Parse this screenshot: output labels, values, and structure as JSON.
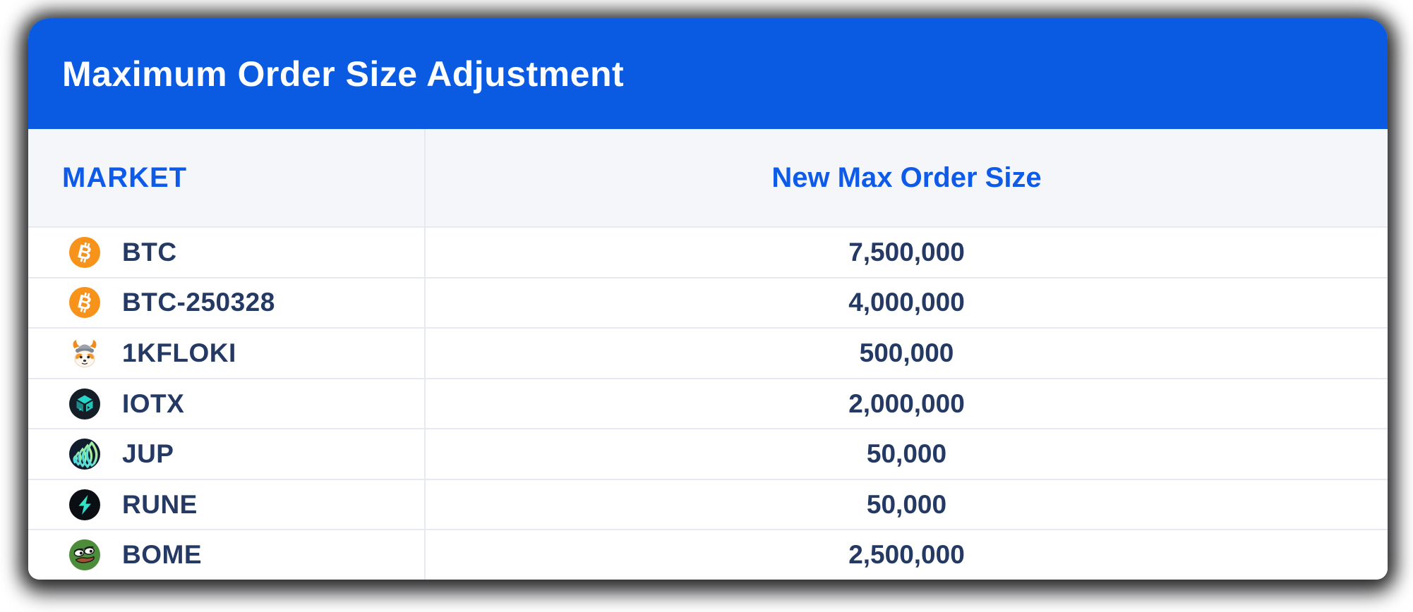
{
  "header": {
    "title": "Maximum Order Size Adjustment"
  },
  "table": {
    "columns": [
      {
        "key": "market",
        "label": "MARKET"
      },
      {
        "key": "new_max_order_size",
        "label": "New Max Order Size"
      }
    ],
    "rows": [
      {
        "market": "BTC",
        "icon": "btc-icon",
        "new_max_order_size": "7,500,000"
      },
      {
        "market": "BTC-250328",
        "icon": "btc-icon",
        "new_max_order_size": "4,000,000"
      },
      {
        "market": "1KFLOKI",
        "icon": "floki-icon",
        "new_max_order_size": "500,000"
      },
      {
        "market": "IOTX",
        "icon": "iotx-icon",
        "new_max_order_size": "2,000,000"
      },
      {
        "market": "JUP",
        "icon": "jup-icon",
        "new_max_order_size": "50,000"
      },
      {
        "market": "RUNE",
        "icon": "rune-icon",
        "new_max_order_size": "50,000"
      },
      {
        "market": "BOME",
        "icon": "bome-icon",
        "new_max_order_size": "2,500,000"
      }
    ]
  },
  "colors": {
    "header_bg": "#0A5BE2",
    "header_title": "#FFFFFF",
    "column_header_bg": "#F4F6FA",
    "column_header_text": "#0D5BE8",
    "row_text": "#243A64",
    "divider": "#E7E9F1",
    "btc_orange": "#F7931A",
    "iotx_teal": "#27D6C9",
    "rune_teal": "#2FE0C4",
    "jup_lime": "#C7F284",
    "jup_cyan": "#35D7F2",
    "bome_green": "#4C8C3A"
  },
  "chart_data": {
    "type": "table",
    "title": "Maximum Order Size Adjustment",
    "columns": [
      "MARKET",
      "New Max Order Size"
    ],
    "rows": [
      [
        "BTC",
        7500000
      ],
      [
        "BTC-250328",
        4000000
      ],
      [
        "1KFLOKI",
        500000
      ],
      [
        "IOTX",
        2000000
      ],
      [
        "JUP",
        50000
      ],
      [
        "RUNE",
        50000
      ],
      [
        "BOME",
        2500000
      ]
    ]
  }
}
